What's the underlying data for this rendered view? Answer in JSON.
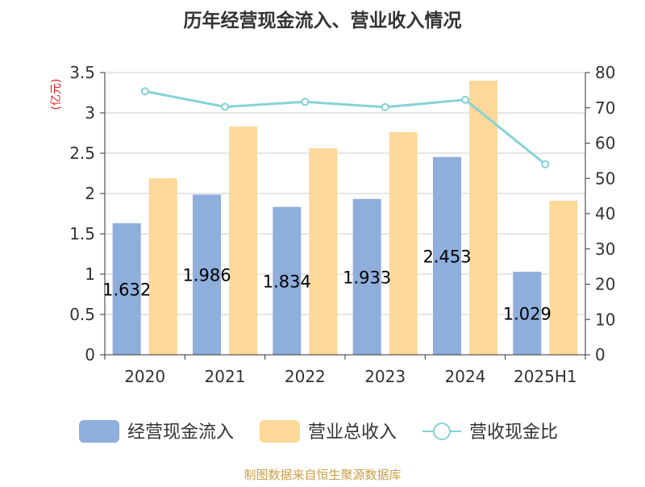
{
  "chart_data": {
    "type": "bar",
    "title": "历年经营现金流入、营业收入情况",
    "categories": [
      "2020",
      "2021",
      "2022",
      "2023",
      "2024",
      "2025H1"
    ],
    "y_left_label": "(亿元)",
    "y_left_ticks": [
      "0",
      "0.5",
      "1",
      "1.5",
      "2",
      "2.5",
      "3",
      "3.5"
    ],
    "y_left_range": [
      0,
      3.5
    ],
    "y_right_ticks": [
      "0",
      "10",
      "20",
      "30",
      "40",
      "50",
      "60",
      "70",
      "80"
    ],
    "y_right_range": [
      0,
      80
    ],
    "series": [
      {
        "name": "经营现金流入",
        "kind": "bar",
        "axis": "left",
        "color": "#8eaedc",
        "values": [
          1.632,
          1.986,
          1.834,
          1.933,
          2.453,
          1.029
        ],
        "labels": [
          "1.632",
          "1.986",
          "1.834",
          "1.933",
          "2.453",
          "1.029"
        ]
      },
      {
        "name": "营业总收入",
        "kind": "bar",
        "axis": "left",
        "color": "#fdd898",
        "values": [
          2.19,
          2.83,
          2.56,
          2.76,
          3.4,
          1.91
        ]
      },
      {
        "name": "营收现金比",
        "kind": "line",
        "axis": "right",
        "color": "#86d2d5",
        "values": [
          74.7,
          70.3,
          71.7,
          70.2,
          72.3,
          54.0
        ]
      }
    ],
    "grid": true,
    "legend_position": "bottom"
  },
  "footer_text": "制图数据来自恒生聚源数据库"
}
